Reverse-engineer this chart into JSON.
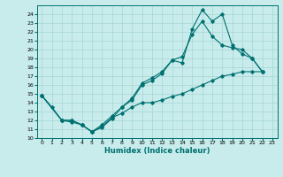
{
  "xlabel": "Humidex (Indice chaleur)",
  "bg_color": "#c8ecec",
  "grid_color": "#a8d4d4",
  "line_color": "#007070",
  "xlim": [
    -0.5,
    23.5
  ],
  "ylim": [
    10,
    25
  ],
  "xtick_vals": [
    0,
    1,
    2,
    3,
    4,
    5,
    6,
    7,
    8,
    9,
    10,
    11,
    12,
    13,
    14,
    15,
    16,
    17,
    18,
    19,
    20,
    21,
    22,
    23
  ],
  "ytick_vals": [
    10,
    11,
    12,
    13,
    14,
    15,
    16,
    17,
    18,
    19,
    20,
    21,
    22,
    23,
    24
  ],
  "line1_x": [
    0,
    1,
    2,
    3,
    4,
    5,
    6,
    7,
    8,
    9,
    10,
    11,
    12,
    13,
    14,
    15,
    16,
    17,
    18,
    19,
    20,
    21,
    22
  ],
  "line1_y": [
    14.8,
    13.5,
    12.0,
    11.8,
    11.5,
    10.7,
    11.3,
    12.3,
    12.8,
    13.5,
    14.0,
    14.0,
    14.3,
    14.7,
    15.0,
    15.5,
    16.0,
    16.5,
    17.0,
    17.2,
    17.5,
    17.5,
    17.5
  ],
  "line2_x": [
    0,
    2,
    3,
    4,
    5,
    6,
    7,
    8,
    9,
    10,
    11,
    12,
    13,
    14,
    15,
    16,
    17,
    18,
    19,
    20,
    21,
    22
  ],
  "line2_y": [
    14.8,
    12.0,
    12.0,
    11.5,
    10.7,
    11.5,
    12.5,
    13.5,
    14.3,
    16.0,
    16.5,
    17.3,
    18.8,
    18.5,
    22.3,
    24.5,
    23.2,
    24.0,
    20.5,
    19.5,
    19.0,
    17.5
  ],
  "line3_x": [
    0,
    2,
    3,
    4,
    5,
    6,
    7,
    8,
    9,
    10,
    11,
    12,
    13,
    14,
    15,
    16,
    17,
    18,
    19,
    20,
    21,
    22
  ],
  "line3_y": [
    14.8,
    12.0,
    12.0,
    11.5,
    10.7,
    11.2,
    12.2,
    13.5,
    14.5,
    16.2,
    16.8,
    17.5,
    18.8,
    19.2,
    21.7,
    23.2,
    21.5,
    20.5,
    20.2,
    20.0,
    19.0,
    17.5
  ],
  "xlabel_fontsize": 6,
  "tick_labelsize": 4.5,
  "marker": "D",
  "markersize": 1.8,
  "linewidth": 0.8
}
